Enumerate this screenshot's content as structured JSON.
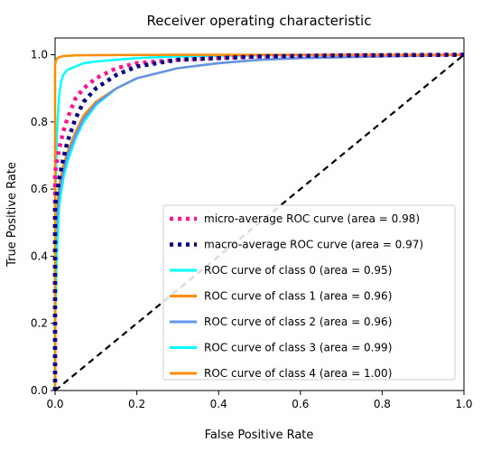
{
  "chart_data": {
    "type": "line",
    "title": "Receiver operating characteristic",
    "xlabel": "False Positive Rate",
    "ylabel": "True Positive Rate",
    "xlim": [
      0.0,
      1.0
    ],
    "ylim": [
      0.0,
      1.05
    ],
    "x_ticks": [
      0.0,
      0.2,
      0.4,
      0.6,
      0.8,
      1.0
    ],
    "y_ticks": [
      0.0,
      0.2,
      0.4,
      0.6,
      0.8,
      1.0
    ],
    "x_tick_labels": [
      "0.0",
      "0.2",
      "0.4",
      "0.6",
      "0.8",
      "1.0"
    ],
    "y_tick_labels": [
      "0.0",
      "0.2",
      "0.4",
      "0.6",
      "0.8",
      "1.0"
    ],
    "legend_position": "lower-right",
    "series": [
      {
        "name": "micro-average ROC curve (area = 0.98)",
        "color": "#ff1493",
        "style": "dotted",
        "x": [
          0.0,
          0.0,
          0.01,
          0.02,
          0.03,
          0.05,
          0.07,
          0.1,
          0.15,
          0.2,
          0.3,
          0.5,
          0.7,
          1.0
        ],
        "y": [
          0.0,
          0.65,
          0.72,
          0.77,
          0.81,
          0.87,
          0.9,
          0.93,
          0.96,
          0.975,
          0.985,
          0.995,
          0.998,
          1.0
        ]
      },
      {
        "name": "macro-average ROC curve (area = 0.97)",
        "color": "#000080",
        "style": "dotted",
        "x": [
          0.0,
          0.0,
          0.01,
          0.02,
          0.03,
          0.05,
          0.07,
          0.1,
          0.15,
          0.2,
          0.3,
          0.5,
          0.7,
          1.0
        ],
        "y": [
          0.0,
          0.55,
          0.63,
          0.69,
          0.74,
          0.81,
          0.86,
          0.9,
          0.94,
          0.965,
          0.985,
          0.995,
          0.998,
          1.0
        ]
      },
      {
        "name": "ROC curve of class 0 (area = 0.95)",
        "color": "#00ffff",
        "style": "solid",
        "x": [
          0.0,
          0.0,
          0.005,
          0.01,
          0.02,
          0.03,
          0.05,
          0.07,
          0.1,
          0.15,
          0.2,
          0.3,
          0.4,
          0.5,
          0.6,
          0.8,
          1.0
        ],
        "y": [
          0.0,
          0.2,
          0.42,
          0.55,
          0.63,
          0.68,
          0.75,
          0.8,
          0.85,
          0.9,
          0.93,
          0.96,
          0.975,
          0.985,
          0.99,
          0.995,
          1.0
        ]
      },
      {
        "name": "ROC curve of class 1 (area = 0.96)",
        "color": "#ff8c00",
        "style": "solid",
        "x": [
          0.0,
          0.0,
          0.005,
          0.01,
          0.02,
          0.03,
          0.05,
          0.07,
          0.1,
          0.15,
          0.2,
          0.3,
          0.4,
          0.5,
          0.6,
          0.8,
          1.0
        ],
        "y": [
          0.0,
          0.45,
          0.55,
          0.61,
          0.67,
          0.71,
          0.77,
          0.82,
          0.86,
          0.9,
          0.93,
          0.96,
          0.975,
          0.985,
          0.99,
          0.995,
          1.0
        ]
      },
      {
        "name": "ROC curve of class 2 (area = 0.96)",
        "color": "#6495ed",
        "style": "solid",
        "x": [
          0.0,
          0.0,
          0.005,
          0.01,
          0.02,
          0.03,
          0.05,
          0.07,
          0.1,
          0.15,
          0.2,
          0.3,
          0.4,
          0.5,
          0.6,
          0.8,
          1.0
        ],
        "y": [
          0.0,
          0.42,
          0.52,
          0.59,
          0.65,
          0.7,
          0.76,
          0.81,
          0.855,
          0.9,
          0.93,
          0.96,
          0.975,
          0.985,
          0.99,
          0.995,
          1.0
        ]
      },
      {
        "name": "ROC curve of class 3 (area = 0.99)",
        "color": "#00ffff",
        "style": "solid",
        "x": [
          0.0,
          0.0,
          0.005,
          0.01,
          0.015,
          0.02,
          0.03,
          0.05,
          0.07,
          0.1,
          0.15,
          0.2,
          0.3,
          0.5,
          0.7,
          1.0
        ],
        "y": [
          0.0,
          0.55,
          0.78,
          0.88,
          0.92,
          0.94,
          0.955,
          0.965,
          0.975,
          0.98,
          0.985,
          0.99,
          0.995,
          0.998,
          0.999,
          1.0
        ]
      },
      {
        "name": "ROC curve of class 4 (area = 1.00)",
        "color": "#ff8c00",
        "style": "solid",
        "x": [
          0.0,
          0.0,
          0.003,
          0.006,
          0.01,
          0.02,
          0.05,
          0.1,
          0.3,
          0.6,
          1.0
        ],
        "y": [
          0.0,
          0.97,
          0.985,
          0.99,
          0.993,
          0.996,
          0.998,
          0.999,
          1.0,
          1.0,
          1.0
        ]
      }
    ],
    "reference_line": {
      "color": "#000000",
      "style": "dashed",
      "x": [
        0.0,
        1.0
      ],
      "y": [
        0.0,
        1.0
      ]
    }
  }
}
